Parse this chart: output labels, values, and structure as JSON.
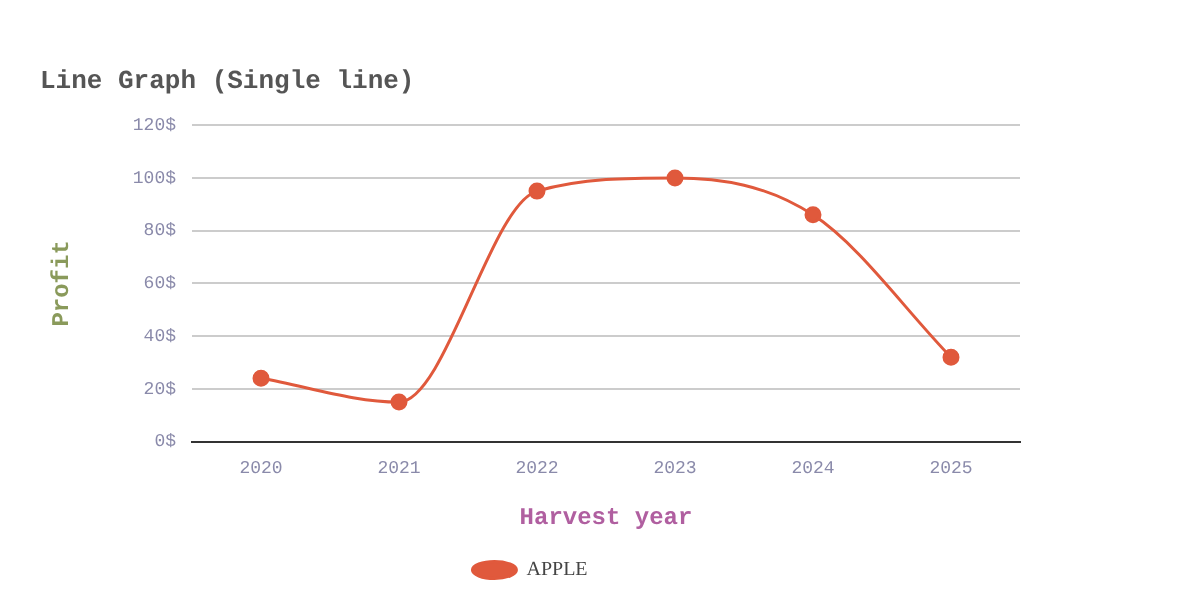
{
  "chart_data": {
    "type": "line",
    "title": "Line Graph (Single line)",
    "xlabel": "Harvest year",
    "ylabel": "Profit",
    "categories": [
      "2020",
      "2021",
      "2022",
      "2023",
      "2024",
      "2025"
    ],
    "series": [
      {
        "name": "APPLE",
        "color": "#e0593c",
        "values": [
          24,
          15,
          95,
          100,
          86,
          32
        ]
      }
    ],
    "ylim": [
      0,
      120
    ],
    "yticks": [
      {
        "value": 0,
        "label": "0$"
      },
      {
        "value": 20,
        "label": "20$"
      },
      {
        "value": 40,
        "label": "40$"
      },
      {
        "value": 60,
        "label": "60$"
      },
      {
        "value": 80,
        "label": "80$"
      },
      {
        "value": 100,
        "label": "100$"
      },
      {
        "value": 120,
        "label": "120$"
      }
    ],
    "grid": "y",
    "legend": "bottom",
    "marker": "circle",
    "line_style": "solid"
  }
}
